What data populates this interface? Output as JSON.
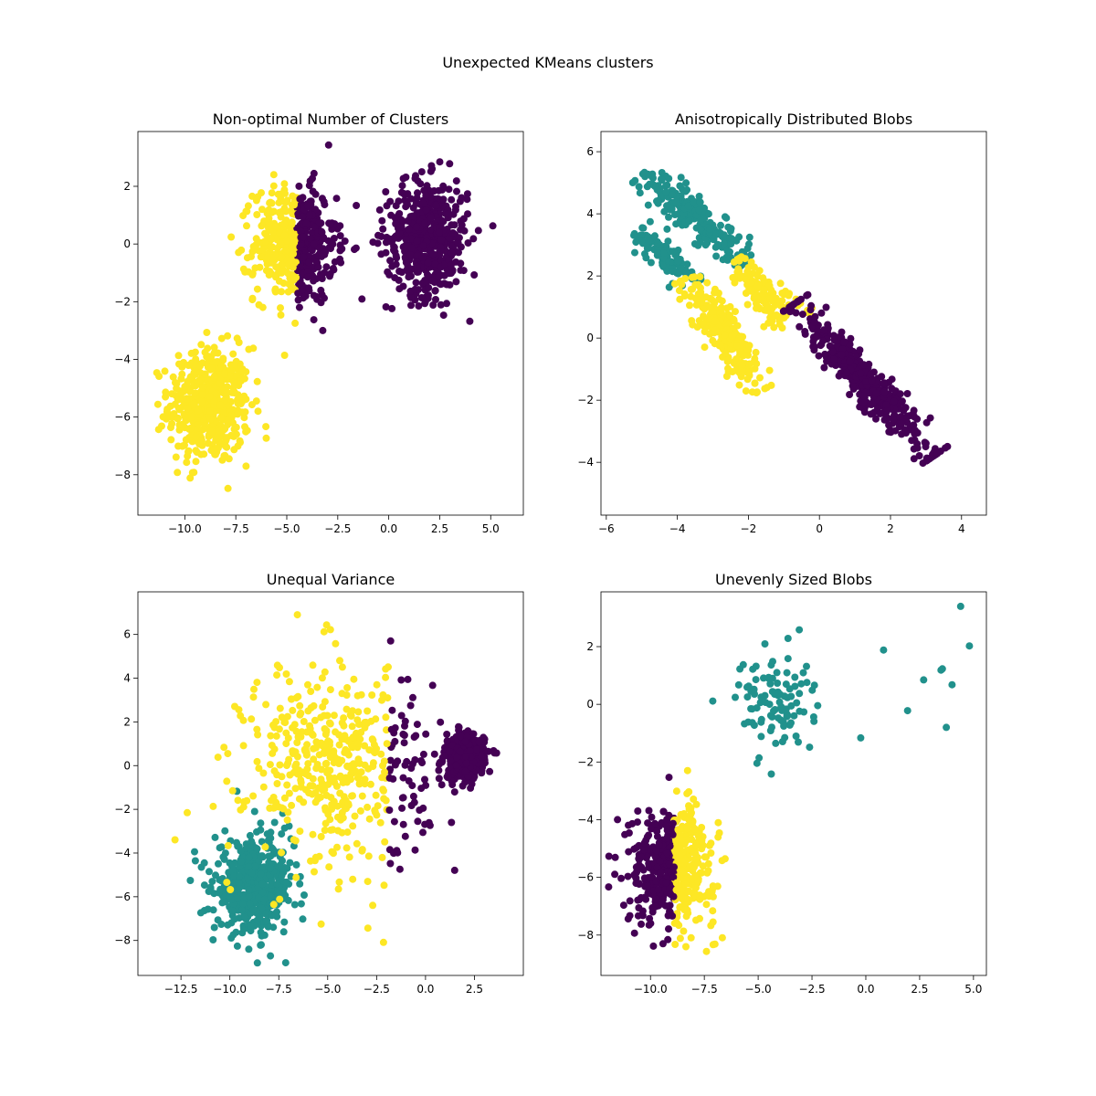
{
  "figure": {
    "suptitle": "Unexpected KMeans clusters"
  },
  "colors": {
    "purple": "#440154",
    "teal": "#21918c",
    "yellow": "#fde725"
  },
  "chart_data": [
    {
      "type": "scatter",
      "title": "Non-optimal Number of Clusters",
      "xlim": [
        -12.3,
        6.6
      ],
      "ylim": [
        -9.4,
        3.9
      ],
      "xticks": [
        -10,
        -7.5,
        -5,
        -2.5,
        0,
        2.5,
        5
      ],
      "xtick_labels": [
        "−10.0",
        "−7.5",
        "−5.0",
        "−2.5",
        "0.0",
        "2.5",
        "5.0"
      ],
      "yticks": [
        -8,
        -6,
        -4,
        -2,
        0,
        2
      ],
      "ytick_labels": [
        "−8",
        "−6",
        "−4",
        "−2",
        "0",
        "2"
      ],
      "grid": false,
      "clusters": [
        {
          "center": [
            -8.8,
            -5.6
          ],
          "std": [
            1.0,
            1.0
          ],
          "n": 500,
          "color": "yellow"
        },
        {
          "center": [
            -4.6,
            0.0
          ],
          "std": [
            1.0,
            1.0
          ],
          "n": 500,
          "color": "yellow",
          "split_x": -4.5,
          "right_color": "purple"
        },
        {
          "center": [
            1.9,
            0.2
          ],
          "std": [
            1.0,
            1.0
          ],
          "n": 500,
          "color": "purple"
        }
      ]
    },
    {
      "type": "scatter",
      "title": "Anisotropically Distributed Blobs",
      "xlim": [
        -6.15,
        4.7
      ],
      "ylim": [
        -5.7,
        6.65
      ],
      "xticks": [
        -6,
        -4,
        -2,
        0,
        2,
        4
      ],
      "xtick_labels": [
        "−6",
        "−4",
        "−2",
        "0",
        "2",
        "4"
      ],
      "yticks": [
        -4,
        -2,
        0,
        2,
        4,
        6
      ],
      "ytick_labels": [
        "−4",
        "−2",
        "0",
        "2",
        "4",
        "6"
      ],
      "grid": false,
      "segments": [
        {
          "from": [
            -4.8,
            5.2
          ],
          "to": [
            -2.2,
            2.6
          ],
          "spread": 0.25,
          "n": 230,
          "color": "teal"
        },
        {
          "from": [
            -2.3,
            2.4
          ],
          "to": [
            -1.0,
            0.5
          ],
          "spread": 0.22,
          "n": 120,
          "color": "yellow"
        },
        {
          "from": [
            -5.0,
            3.4
          ],
          "to": [
            -3.6,
            1.8
          ],
          "spread": 0.22,
          "n": 120,
          "color": "teal"
        },
        {
          "from": [
            -3.6,
            1.8
          ],
          "to": [
            -1.7,
            -1.5
          ],
          "spread": 0.25,
          "n": 250,
          "color": "yellow"
        },
        {
          "from": [
            -1.0,
            1.5
          ],
          "to": [
            -0.3,
            0.8
          ],
          "spread": 0.15,
          "n": 15,
          "color": "yellow"
        },
        {
          "from": [
            -0.5,
            0.9
          ],
          "to": [
            3.0,
            -3.6
          ],
          "spread": 0.25,
          "n": 450,
          "color": "purple"
        }
      ]
    },
    {
      "type": "scatter",
      "title": "Unequal Variance",
      "xlim": [
        -14.7,
        5.0
      ],
      "ylim": [
        -9.6,
        7.95
      ],
      "xticks": [
        -12.5,
        -10,
        -7.5,
        -5,
        -2.5,
        0,
        2.5
      ],
      "xtick_labels": [
        "−12.5",
        "−10.0",
        "−7.5",
        "−5.0",
        "−2.5",
        "0.0",
        "2.5"
      ],
      "yticks": [
        -8,
        -6,
        -4,
        -2,
        0,
        2,
        4,
        6
      ],
      "ytick_labels": [
        "−8",
        "−6",
        "−4",
        "−2",
        "0",
        "2",
        "4",
        "6"
      ],
      "grid": false,
      "clusters": [
        {
          "center": [
            -8.8,
            -5.6
          ],
          "std": [
            1.0,
            1.0
          ],
          "n": 480,
          "color": "teal"
        },
        {
          "center": [
            -9.0,
            -4.5
          ],
          "std": [
            2.0,
            1.8
          ],
          "n": 30,
          "color": "teal"
        },
        {
          "center": [
            -4.5,
            0.0
          ],
          "std": [
            2.3,
            2.3
          ],
          "n": 480,
          "color": "yellow",
          "split_x": -1.9,
          "right_color": "purple"
        },
        {
          "center": [
            2.0,
            0.4
          ],
          "std": [
            0.5,
            0.5
          ],
          "n": 480,
          "color": "purple"
        }
      ]
    },
    {
      "type": "scatter",
      "title": "Unevenly Sized Blobs",
      "xlim": [
        -12.3,
        5.6
      ],
      "ylim": [
        -9.4,
        3.9
      ],
      "xticks": [
        -10,
        -7.5,
        -5,
        -2.5,
        0,
        2.5,
        5
      ],
      "xtick_labels": [
        "−10.0",
        "−7.5",
        "−5.0",
        "−2.5",
        "0.0",
        "2.5",
        "5.0"
      ],
      "yticks": [
        -8,
        -6,
        -4,
        -2,
        0,
        2
      ],
      "ytick_labels": [
        "−8",
        "−6",
        "−4",
        "−2",
        "0",
        "2"
      ],
      "grid": false,
      "clusters": [
        {
          "center": [
            -9.0,
            -5.6
          ],
          "std": [
            1.0,
            1.0
          ],
          "n": 500,
          "color": "purple",
          "split_x": -8.9,
          "right_color": "yellow"
        },
        {
          "center": [
            -4.3,
            0.1
          ],
          "std": [
            0.9,
            0.9
          ],
          "n": 100,
          "color": "teal"
        },
        {
          "center": [
            2.2,
            0.3
          ],
          "std": [
            1.3,
            1.2
          ],
          "n": 10,
          "color": "teal"
        }
      ]
    }
  ]
}
